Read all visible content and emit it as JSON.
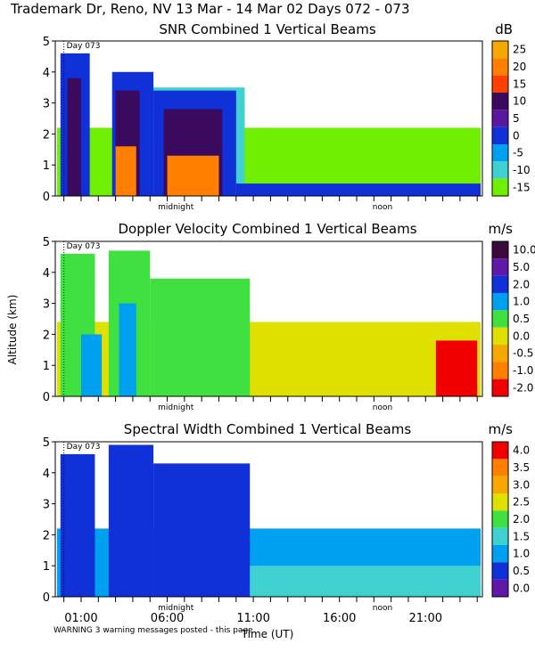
{
  "header": {
    "site_title": "Trademark Dr, Reno, NV  13 Mar - 14 Mar 02 Days 072 - 073"
  },
  "x_axis": {
    "xlabel": "Time (UT)",
    "tick_labels": [
      "01:00",
      "06:00",
      "11:00",
      "16:00",
      "21:00"
    ],
    "tick_hours": [
      1,
      6,
      11,
      16,
      21
    ],
    "range_hours": [
      -0.5,
      24.3
    ],
    "day_marker_hour": 0,
    "day_marker_label": "Day 073",
    "midnight_label": "midnight",
    "midnight_hour": 6.5,
    "noon_label": "noon",
    "noon_hour": 18.5
  },
  "ylabel": "Altitude (km)",
  "warning": "WARNING  3 warning messages posted - this page",
  "chart_data": [
    {
      "type": "heatmap",
      "title": "SNR Combined 1 Vertical Beams",
      "unit": "dB",
      "ylim": [
        0,
        5
      ],
      "yticks": [
        0,
        1,
        2,
        3,
        4,
        5
      ],
      "colorbar": {
        "labels": [
          "25",
          "20",
          "15",
          "10",
          "5",
          "0",
          "-5",
          "-10",
          "-15"
        ],
        "colors": [
          "#f6a800",
          "#ff7f00",
          "#ff4000",
          "#3a0a5e",
          "#5a18a0",
          "#1030d8",
          "#00a0f0",
          "#40d0d0",
          "#70f000"
        ]
      },
      "regions": [
        {
          "name": "background",
          "t0": -0.4,
          "t1": 24.2,
          "h": 2.2,
          "color": "#70f000"
        },
        {
          "name": "mid-cyan",
          "t0": 5.0,
          "t1": 10.5,
          "h": 3.5,
          "color": "#40d0d0"
        },
        {
          "name": "plume-1",
          "t0": -0.2,
          "t1": 1.5,
          "h": 4.6,
          "color": "#1030d8"
        },
        {
          "name": "plume-2",
          "t0": 2.8,
          "t1": 5.2,
          "h": 4.0,
          "color": "#1030d8"
        },
        {
          "name": "plume-3",
          "t0": 5.2,
          "t1": 10.0,
          "h": 3.4,
          "color": "#1030d8"
        },
        {
          "name": "core-1",
          "t0": 0.2,
          "t1": 1.0,
          "h": 3.8,
          "color": "#3a0a5e"
        },
        {
          "name": "core-2",
          "t0": 3.0,
          "t1": 4.4,
          "h": 3.4,
          "color": "#3a0a5e"
        },
        {
          "name": "core-3",
          "t0": 5.8,
          "t1": 9.2,
          "h": 2.8,
          "color": "#3a0a5e"
        },
        {
          "name": "hot-1",
          "t0": 3.0,
          "t1": 4.2,
          "h": 1.6,
          "color": "#ff7f00"
        },
        {
          "name": "hot-2",
          "t0": 6.0,
          "t1": 9.0,
          "h": 1.3,
          "color": "#ff7f00"
        },
        {
          "name": "low-layer",
          "t0": 10.0,
          "t1": 24.2,
          "h": 0.4,
          "color": "#1030d8"
        }
      ]
    },
    {
      "type": "heatmap",
      "title": "Doppler Velocity Combined 1 Vertical Beams",
      "unit": "m/s",
      "ylim": [
        0,
        5
      ],
      "yticks": [
        0,
        1,
        2,
        3,
        4,
        5
      ],
      "colorbar": {
        "labels": [
          "10.0",
          "5.0",
          "2.0",
          "1.0",
          "0.5",
          "0.0",
          "-0.5",
          "-1.0",
          "-2.0"
        ],
        "colors": [
          "#3a0a3a",
          "#6018a8",
          "#1030d8",
          "#00a0f0",
          "#40e040",
          "#e0e000",
          "#f6a800",
          "#ff7f00",
          "#f00000"
        ]
      },
      "regions": [
        {
          "name": "background",
          "t0": -0.4,
          "t1": 24.2,
          "h": 2.4,
          "color": "#e0e000"
        },
        {
          "name": "green-1",
          "t0": -0.2,
          "t1": 1.8,
          "h": 4.6,
          "color": "#40e040"
        },
        {
          "name": "green-2",
          "t0": 2.6,
          "t1": 5.0,
          "h": 4.7,
          "color": "#40e040"
        },
        {
          "name": "green-3",
          "t0": 5.0,
          "t1": 10.8,
          "h": 3.8,
          "color": "#40e040"
        },
        {
          "name": "cyan-1",
          "t0": 1.0,
          "t1": 2.2,
          "h": 2.0,
          "color": "#00a0f0"
        },
        {
          "name": "cyan-2",
          "t0": 3.2,
          "t1": 4.2,
          "h": 3.0,
          "color": "#00a0f0"
        },
        {
          "name": "red-right",
          "t0": 21.6,
          "t1": 24.0,
          "h": 1.8,
          "color": "#f00000"
        }
      ]
    },
    {
      "type": "heatmap",
      "title": "Spectral Width Combined 1 Vertical Beams",
      "unit": "m/s",
      "ylim": [
        0,
        5
      ],
      "yticks": [
        0,
        1,
        2,
        3,
        4,
        5
      ],
      "colorbar": {
        "labels": [
          "4.0",
          "3.5",
          "3.0",
          "2.5",
          "2.0",
          "1.5",
          "1.0",
          "0.5",
          "0.0"
        ],
        "colors": [
          "#f00000",
          "#ff7f00",
          "#f6a800",
          "#e0e000",
          "#40e040",
          "#40d0d0",
          "#00a0f0",
          "#1030d8",
          "#6018a8"
        ]
      },
      "regions": [
        {
          "name": "background",
          "t0": -0.4,
          "t1": 24.2,
          "h": 2.2,
          "color": "#00a0f0"
        },
        {
          "name": "blue-1",
          "t0": -0.2,
          "t1": 1.8,
          "h": 4.6,
          "color": "#1030d8"
        },
        {
          "name": "blue-2",
          "t0": 2.6,
          "t1": 5.2,
          "h": 4.9,
          "color": "#1030d8"
        },
        {
          "name": "blue-3",
          "t0": 5.2,
          "t1": 10.8,
          "h": 4.3,
          "color": "#1030d8"
        },
        {
          "name": "cyan-low",
          "t0": 10.8,
          "t1": 24.2,
          "h": 1.0,
          "color": "#40d0d0"
        }
      ]
    }
  ]
}
